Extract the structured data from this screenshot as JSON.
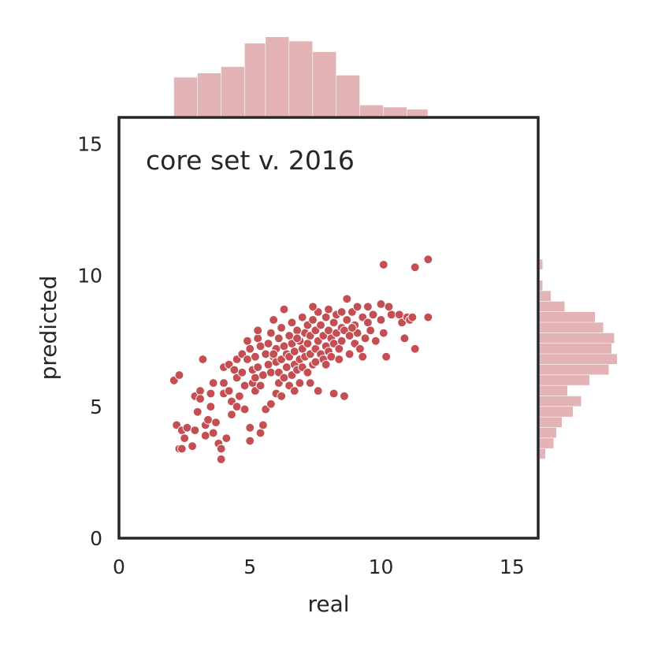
{
  "chart_data": {
    "type": "scatter",
    "annotation": "core set v. 2016",
    "xlabel": "real",
    "ylabel": "predicted",
    "xlim": [
      0,
      16
    ],
    "ylim": [
      0,
      16
    ],
    "xticks": [
      0,
      5,
      10,
      15
    ],
    "yticks": [
      0,
      5,
      10,
      15
    ],
    "xtick_labels": [
      "0",
      "5",
      "10",
      "15"
    ],
    "ytick_labels": [
      "0",
      "5",
      "10",
      "15"
    ],
    "grid": false,
    "point_color": "#c44e52",
    "hist_color": "#e4b3b5",
    "points": [
      [
        2.1,
        6.0
      ],
      [
        2.3,
        6.2
      ],
      [
        2.2,
        4.3
      ],
      [
        2.4,
        4.1
      ],
      [
        2.3,
        3.4
      ],
      [
        2.4,
        3.4
      ],
      [
        2.6,
        4.2
      ],
      [
        2.5,
        3.8
      ],
      [
        2.8,
        3.5
      ],
      [
        2.9,
        4.1
      ],
      [
        2.9,
        5.4
      ],
      [
        3.0,
        4.8
      ],
      [
        3.1,
        5.6
      ],
      [
        3.2,
        6.8
      ],
      [
        3.1,
        5.3
      ],
      [
        3.3,
        4.3
      ],
      [
        3.4,
        4.5
      ],
      [
        3.5,
        5.0
      ],
      [
        3.3,
        3.9
      ],
      [
        3.6,
        5.9
      ],
      [
        3.6,
        4.0
      ],
      [
        3.7,
        4.4
      ],
      [
        3.5,
        5.5
      ],
      [
        3.8,
        3.6
      ],
      [
        3.9,
        3.0
      ],
      [
        3.9,
        3.4
      ],
      [
        4.0,
        5.5
      ],
      [
        4.0,
        6.5
      ],
      [
        4.0,
        5.9
      ],
      [
        4.1,
        3.8
      ],
      [
        4.2,
        5.6
      ],
      [
        4.2,
        6.6
      ],
      [
        4.3,
        5.2
      ],
      [
        4.3,
        4.7
      ],
      [
        4.5,
        6.8
      ],
      [
        4.5,
        6.1
      ],
      [
        4.5,
        5.0
      ],
      [
        4.6,
        5.4
      ],
      [
        4.7,
        6.3
      ],
      [
        4.7,
        7.0
      ],
      [
        4.8,
        5.8
      ],
      [
        4.8,
        4.9
      ],
      [
        4.9,
        7.5
      ],
      [
        4.9,
        6.8
      ],
      [
        5.0,
        4.2
      ],
      [
        5.0,
        3.7
      ],
      [
        5.0,
        7.2
      ],
      [
        5.1,
        5.9
      ],
      [
        5.1,
        6.4
      ],
      [
        5.2,
        5.6
      ],
      [
        5.2,
        6.1
      ],
      [
        5.2,
        6.9
      ],
      [
        5.3,
        7.6
      ],
      [
        5.3,
        7.9
      ],
      [
        5.3,
        6.5
      ],
      [
        5.4,
        5.8
      ],
      [
        5.4,
        7.3
      ],
      [
        5.4,
        4.0
      ],
      [
        5.5,
        6.2
      ],
      [
        5.5,
        4.3
      ],
      [
        5.6,
        4.9
      ],
      [
        5.6,
        7.0
      ],
      [
        5.7,
        6.6
      ],
      [
        5.7,
        7.4
      ],
      [
        5.8,
        5.1
      ],
      [
        5.8,
        6.3
      ],
      [
        5.8,
        7.8
      ],
      [
        5.9,
        6.9
      ],
      [
        5.9,
        8.3
      ],
      [
        6.0,
        5.5
      ],
      [
        6.0,
        6.7
      ],
      [
        6.0,
        7.2
      ],
      [
        6.1,
        5.9
      ],
      [
        6.1,
        7.6
      ],
      [
        6.1,
        6.3
      ],
      [
        6.2,
        8.0
      ],
      [
        6.2,
        6.8
      ],
      [
        6.2,
        5.4
      ],
      [
        6.3,
        7.3
      ],
      [
        6.3,
        6.1
      ],
      [
        6.3,
        8.7
      ],
      [
        6.4,
        7.0
      ],
      [
        6.4,
        6.5
      ],
      [
        6.5,
        5.8
      ],
      [
        6.5,
        7.7
      ],
      [
        6.5,
        6.9
      ],
      [
        6.6,
        6.2
      ],
      [
        6.6,
        7.4
      ],
      [
        6.6,
        8.2
      ],
      [
        6.7,
        6.6
      ],
      [
        6.7,
        5.6
      ],
      [
        6.7,
        7.1
      ],
      [
        6.8,
        7.9
      ],
      [
        6.8,
        6.4
      ],
      [
        6.9,
        7.5
      ],
      [
        6.9,
        6.8
      ],
      [
        6.9,
        5.9
      ],
      [
        7.0,
        7.2
      ],
      [
        7.0,
        8.4
      ],
      [
        7.0,
        6.5
      ],
      [
        7.1,
        7.8
      ],
      [
        7.1,
        6.9
      ],
      [
        7.2,
        7.4
      ],
      [
        7.2,
        8.1
      ],
      [
        7.2,
        6.3
      ],
      [
        7.3,
        7.0
      ],
      [
        7.3,
        5.9
      ],
      [
        7.3,
        7.7
      ],
      [
        7.4,
        6.6
      ],
      [
        7.4,
        8.3
      ],
      [
        7.5,
        7.2
      ],
      [
        7.5,
        7.9
      ],
      [
        7.5,
        6.7
      ],
      [
        7.6,
        8.6
      ],
      [
        7.6,
        7.5
      ],
      [
        7.6,
        5.6
      ],
      [
        7.7,
        7.0
      ],
      [
        7.7,
        8.1
      ],
      [
        7.8,
        6.8
      ],
      [
        7.8,
        7.7
      ],
      [
        7.9,
        8.4
      ],
      [
        7.9,
        7.3
      ],
      [
        7.9,
        6.6
      ],
      [
        8.0,
        7.9
      ],
      [
        8.0,
        8.7
      ],
      [
        8.0,
        7.1
      ],
      [
        8.1,
        7.6
      ],
      [
        8.1,
        6.9
      ],
      [
        8.2,
        8.2
      ],
      [
        8.2,
        5.5
      ],
      [
        8.2,
        7.4
      ],
      [
        8.3,
        8.5
      ],
      [
        8.3,
        7.8
      ],
      [
        8.4,
        7.2
      ],
      [
        8.4,
        6.8
      ],
      [
        8.5,
        8.0
      ],
      [
        8.5,
        8.6
      ],
      [
        8.5,
        7.5
      ],
      [
        8.6,
        5.4
      ],
      [
        8.6,
        7.9
      ],
      [
        8.7,
        8.3
      ],
      [
        8.7,
        9.1
      ],
      [
        8.8,
        7.7
      ],
      [
        8.8,
        7.0
      ],
      [
        8.9,
        8.6
      ],
      [
        9.0,
        8.1
      ],
      [
        9.0,
        7.4
      ],
      [
        9.1,
        8.8
      ],
      [
        9.1,
        7.8
      ],
      [
        9.2,
        7.2
      ],
      [
        9.3,
        8.4
      ],
      [
        9.3,
        6.9
      ],
      [
        9.4,
        7.6
      ],
      [
        9.5,
        8.2
      ],
      [
        9.5,
        8.8
      ],
      [
        9.6,
        7.9
      ],
      [
        9.7,
        8.5
      ],
      [
        9.8,
        7.5
      ],
      [
        10.0,
        8.9
      ],
      [
        10.0,
        8.3
      ],
      [
        10.1,
        7.8
      ],
      [
        10.1,
        10.4
      ],
      [
        10.2,
        6.9
      ],
      [
        10.3,
        8.8
      ],
      [
        10.4,
        8.5
      ],
      [
        10.7,
        8.5
      ],
      [
        10.8,
        8.2
      ],
      [
        10.9,
        7.6
      ],
      [
        11.0,
        8.4
      ],
      [
        11.1,
        8.3
      ],
      [
        11.2,
        8.4
      ],
      [
        11.3,
        10.3
      ],
      [
        11.3,
        7.2
      ],
      [
        11.8,
        10.6
      ],
      [
        11.8,
        8.4
      ],
      [
        4.4,
        6.4
      ],
      [
        5.9,
        7.0
      ],
      [
        6.8,
        7.6
      ],
      [
        7.4,
        8.8
      ],
      [
        8.9,
        8.0
      ]
    ],
    "x_histogram": {
      "bin_edges": [
        2.1,
        3.0,
        3.9,
        4.8,
        5.6,
        6.5,
        7.4,
        8.3,
        9.2,
        10.1,
        11.0,
        11.8
      ],
      "counts": [
        18,
        20,
        23,
        34,
        37,
        35,
        30,
        19,
        5,
        4,
        3
      ]
    },
    "y_histogram": {
      "bin_edges": [
        3.0,
        3.4,
        3.8,
        4.2,
        4.6,
        5.0,
        5.4,
        5.8,
        6.2,
        6.6,
        7.0,
        7.4,
        7.8,
        8.2,
        8.6,
        9.0,
        9.4,
        9.8,
        10.2,
        10.6
      ],
      "counts": [
        2,
        5,
        6,
        8,
        12,
        15,
        10,
        18,
        25,
        28,
        26,
        27,
        23,
        20,
        9,
        4,
        1,
        0,
        1
      ]
    }
  }
}
